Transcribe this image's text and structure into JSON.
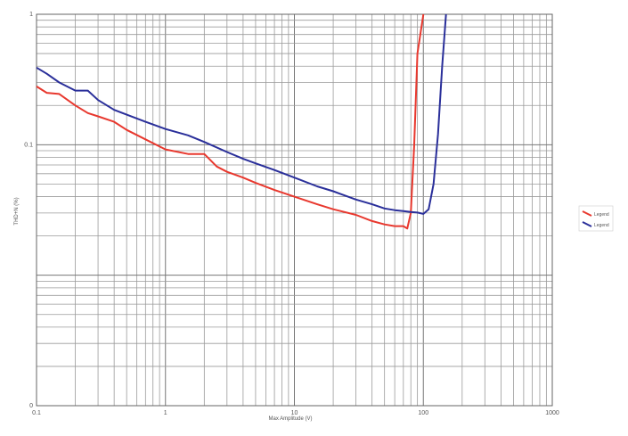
{
  "chart_data": {
    "type": "line",
    "title": "",
    "xlabel": "Max Amplitude (V)",
    "ylabel": "THD+N (%)",
    "x_scale": "log",
    "y_scale": "log",
    "xlim": [
      0.1,
      1000
    ],
    "ylim": [
      0.001,
      1
    ],
    "grid": true,
    "legend_position": "right",
    "x_ticks": [
      {
        "value": 0.1,
        "label": "0.1"
      },
      {
        "value": 1,
        "label": "1"
      },
      {
        "value": 10,
        "label": "10"
      },
      {
        "value": 100,
        "label": "100"
      },
      {
        "value": 1000,
        "label": "1000"
      }
    ],
    "y_ticks": [
      {
        "value": 1,
        "label": "1"
      },
      {
        "value": 0.1,
        "label": "0.1"
      },
      {
        "value": 0.01,
        "label": ""
      },
      {
        "value": 0.001,
        "label": "0"
      }
    ],
    "series": [
      {
        "name": "Legend",
        "color": "#e8382e",
        "x": [
          0.1,
          0.12,
          0.15,
          0.2,
          0.25,
          0.3,
          0.4,
          0.5,
          0.7,
          1,
          1.5,
          2,
          2.5,
          3,
          4,
          5,
          7,
          10,
          15,
          20,
          30,
          40,
          50,
          60,
          70,
          75,
          80,
          85,
          90,
          100
        ],
        "y": [
          0.28,
          0.25,
          0.245,
          0.2,
          0.175,
          0.165,
          0.15,
          0.13,
          0.11,
          0.092,
          0.085,
          0.085,
          0.068,
          0.062,
          0.056,
          0.051,
          0.045,
          0.04,
          0.035,
          0.032,
          0.029,
          0.026,
          0.0245,
          0.0238,
          0.0238,
          0.0228,
          0.03,
          0.1,
          0.5,
          1
        ]
      },
      {
        "name": "Legend",
        "color": "#2a2f9a",
        "x": [
          0.1,
          0.12,
          0.15,
          0.2,
          0.25,
          0.3,
          0.4,
          0.5,
          0.7,
          1,
          1.5,
          2,
          3,
          4,
          5,
          7,
          10,
          15,
          20,
          30,
          40,
          50,
          60,
          70,
          80,
          90,
          100,
          110,
          120,
          130,
          140,
          150
        ],
        "y": [
          0.39,
          0.35,
          0.3,
          0.26,
          0.26,
          0.22,
          0.185,
          0.17,
          0.15,
          0.132,
          0.118,
          0.105,
          0.088,
          0.078,
          0.072,
          0.064,
          0.056,
          0.048,
          0.044,
          0.038,
          0.035,
          0.0325,
          0.0315,
          0.031,
          0.0305,
          0.0302,
          0.0295,
          0.032,
          0.05,
          0.12,
          0.4,
          1
        ]
      }
    ]
  }
}
